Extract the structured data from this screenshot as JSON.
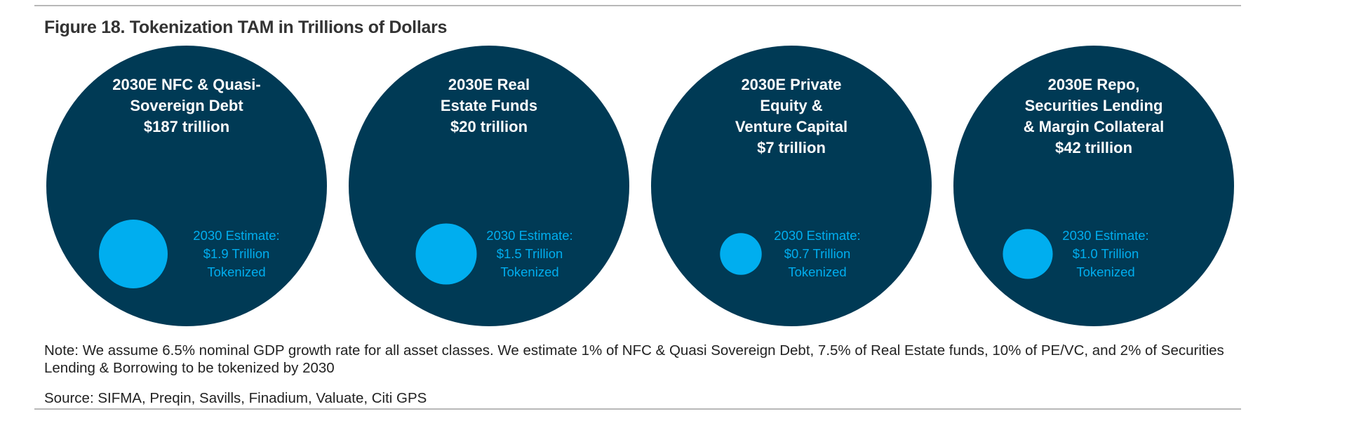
{
  "figure": {
    "title": "Figure 18. Tokenization TAM in Trillions of Dollars",
    "note": "Note: We assume 6.5% nominal GDP growth rate for all asset classes. We estimate 1% of NFC & Quasi Sovereign Debt, 7.5% of Real Estate funds, 10% of PE/VC, and 2% of Securities Lending & Borrowing  to be tokenized by 2030",
    "source": "Source: SIFMA, Preqin, Savills, Finadium, Valuate, Citi GPS"
  },
  "colors": {
    "outer_circle": "#003a55",
    "inner_circle": "#00aeef",
    "header_text": "#ffffff",
    "estimate_text": "#00aeef"
  },
  "chart_data": {
    "type": "bubble",
    "title": "Figure 18. Tokenization TAM in Trillions of Dollars",
    "unit": "trillion USD",
    "categories": [
      "2030E NFC & Quasi-Sovereign Debt",
      "2030E Real Estate Funds",
      "2030E Private Equity & Venture Capital",
      "2030E Repo, Securities Lending & Margin Collateral"
    ],
    "series": [
      {
        "name": "2030E TAM",
        "values": [
          187,
          20,
          7,
          42
        ]
      },
      {
        "name": "2030 Estimate Tokenized",
        "values": [
          1.9,
          1.5,
          0.7,
          1.0
        ]
      }
    ],
    "items": [
      {
        "header_lines": [
          "2030E NFC & Quasi-",
          "Sovereign Debt",
          "$187 trillion"
        ],
        "estimate_lines": [
          "2030 Estimate:",
          "$1.9 Trillion",
          "Tokenized"
        ],
        "tam": 187,
        "tokenized": 1.9
      },
      {
        "header_lines": [
          "2030E Real",
          "Estate Funds",
          "$20 trillion"
        ],
        "estimate_lines": [
          "2030 Estimate:",
          "$1.5 Trillion",
          "Tokenized"
        ],
        "tam": 20,
        "tokenized": 1.5
      },
      {
        "header_lines": [
          "2030E Private",
          "Equity &",
          "Venture Capital",
          "$7 trillion"
        ],
        "estimate_lines": [
          "2030 Estimate:",
          "$0.7 Trillion",
          "Tokenized"
        ],
        "tam": 7,
        "tokenized": 0.7
      },
      {
        "header_lines": [
          "2030E Repo,",
          "Securities Lending",
          "& Margin Collateral",
          "$42 trillion"
        ],
        "estimate_lines": [
          "2030 Estimate:",
          "$1.0 Trillion",
          "Tokenized"
        ],
        "tam": 42,
        "tokenized": 1.0
      }
    ]
  }
}
